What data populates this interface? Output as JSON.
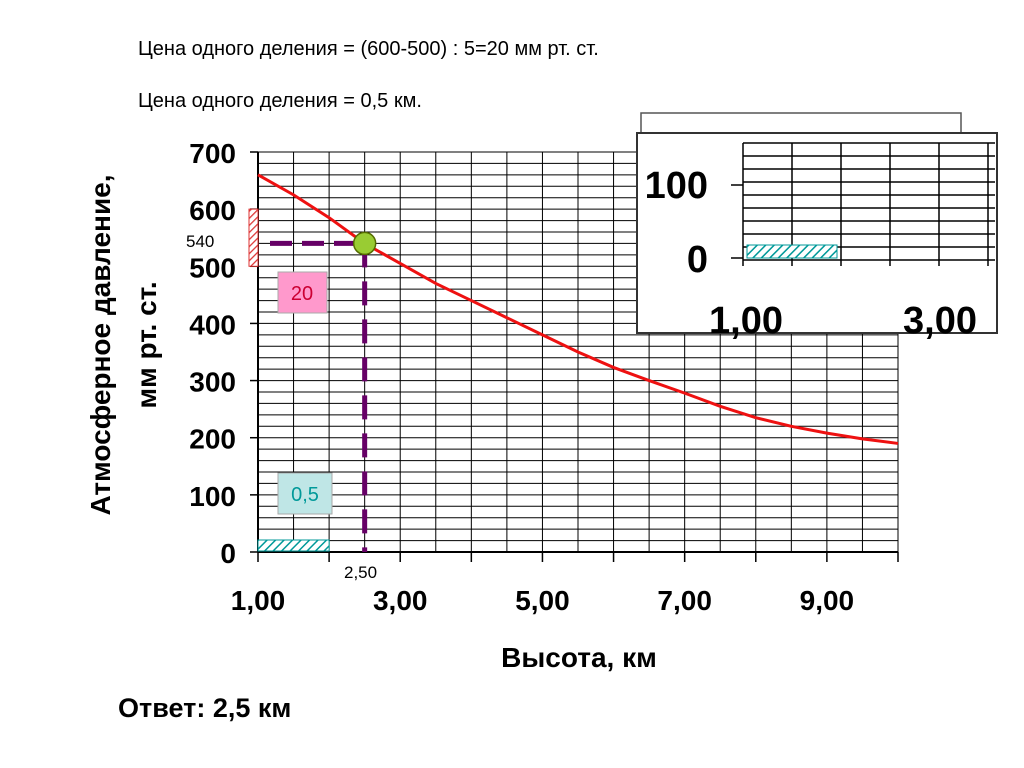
{
  "notes": {
    "line1": "Цена одного деления = (600-500) : 5=20 мм рт. ст.",
    "line2": "Цена одного деления = 0,5 км."
  },
  "answer": "Ответ: 2,5 км",
  "chart_data": {
    "type": "line",
    "xlabel": "Высота, км",
    "ylabel_lines": [
      "Атмосферное давление,",
      "мм рт. ст."
    ],
    "xlim": [
      1,
      10
    ],
    "ylim": [
      0,
      700
    ],
    "x_ticks": [
      1,
      3,
      5,
      7,
      9
    ],
    "x_tick_labels": [
      "1,00",
      "3,00",
      "5,00",
      "7,00",
      "9,00"
    ],
    "y_ticks": [
      0,
      100,
      200,
      300,
      400,
      500,
      600,
      700
    ],
    "y_tick_labels": [
      "0",
      "100",
      "200",
      "300",
      "400",
      "500",
      "600",
      "700"
    ],
    "grid": true,
    "series": [
      {
        "color": "#ee1111",
        "x": [
          1.0,
          1.5,
          2.0,
          2.5,
          3.0,
          3.5,
          4.0,
          4.5,
          5.0,
          5.5,
          6.0,
          6.5,
          7.0,
          7.5,
          8.0,
          8.5,
          9.0,
          9.5,
          10.0
        ],
        "y": [
          660,
          625,
          585,
          540,
          505,
          470,
          440,
          410,
          380,
          350,
          323,
          300,
          278,
          255,
          235,
          220,
          208,
          198,
          190
        ]
      }
    ],
    "highlight_point": {
      "x": 2.5,
      "y": 540,
      "color": "#99cc33"
    },
    "guide_color": "#660066",
    "annotations": {
      "y_value_label": "540",
      "x_value_label": "2,50",
      "y_step_badge": "20",
      "x_step_badge": "0,5",
      "y_step_badge_color": "#ff99cc",
      "y_step_badge_text_color": "#cc0033",
      "x_step_badge_color": "#bfe6e6",
      "x_step_badge_text_color": "#009999"
    },
    "inset": {
      "y_tick_labels": [
        "100",
        "0"
      ],
      "x_tick_labels": [
        "1,00",
        "3,00"
      ]
    }
  }
}
